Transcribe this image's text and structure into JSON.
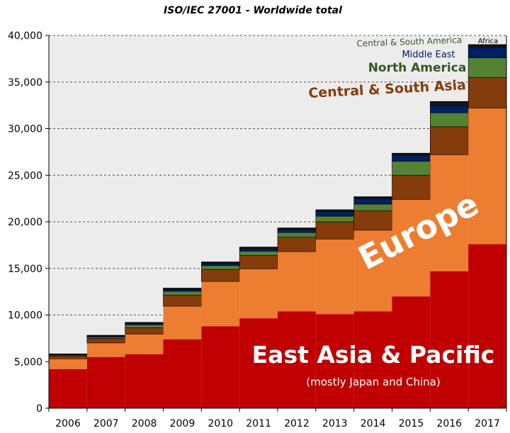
{
  "chart_data": {
    "type": "bar",
    "stacked": true,
    "title": "ISO/IEC 27001 - Worldwide total",
    "xlabel": "",
    "ylabel": "",
    "ylim": [
      0,
      40000
    ],
    "yticks": [
      0,
      5000,
      10000,
      15000,
      20000,
      25000,
      30000,
      35000,
      40000
    ],
    "ytick_labels": [
      "0",
      "5,000",
      "10,000",
      "15,000",
      "20,000",
      "25,000",
      "30,000",
      "35,000",
      "40,000"
    ],
    "grid": true,
    "legend": "none",
    "categories": [
      "2006",
      "2007",
      "2008",
      "2009",
      "2010",
      "2011",
      "2012",
      "2013",
      "2014",
      "2015",
      "2016",
      "2017"
    ],
    "series": [
      {
        "name": "East Asia & Pacific",
        "color": "#c00000",
        "values": [
          4200,
          5500,
          5800,
          7400,
          8800,
          9650,
          10400,
          10100,
          10400,
          12000,
          14700,
          17600
        ]
      },
      {
        "name": "Europe",
        "color": "#ed7d31",
        "values": [
          1100,
          1500,
          2150,
          3550,
          4800,
          5300,
          6400,
          8050,
          8700,
          10400,
          12500,
          14600
        ]
      },
      {
        "name": "Central & South Asia",
        "color": "#843c0c",
        "values": [
          300,
          500,
          700,
          1200,
          1300,
          1450,
          1550,
          1850,
          2100,
          2600,
          3000,
          3300
        ]
      },
      {
        "name": "North America",
        "color": "#548235",
        "values": [
          100,
          150,
          300,
          400,
          400,
          450,
          500,
          600,
          700,
          1500,
          1500,
          2100
        ]
      },
      {
        "name": "Middle East",
        "color": "#002060",
        "values": [
          70,
          100,
          130,
          200,
          200,
          250,
          300,
          500,
          600,
          600,
          800,
          1100
        ]
      },
      {
        "name": "Central & South America",
        "color": "#1a1a1a",
        "values": [
          40,
          50,
          90,
          100,
          150,
          150,
          150,
          150,
          150,
          200,
          300,
          200
        ]
      },
      {
        "name": "Africa",
        "color": "#111111",
        "values": [
          10,
          10,
          20,
          20,
          30,
          30,
          30,
          30,
          30,
          50,
          100,
          100
        ]
      }
    ],
    "annotations": {
      "east_asia": "East Asia & Pacific",
      "east_asia_note": "(mostly Japan and China)",
      "europe": "Europe",
      "central_south_asia": "Central & South Asia",
      "north_america": "North America",
      "middle_east": "Middle East",
      "central_south_america": "Central & South America",
      "africa": "Africa"
    },
    "colors": {
      "plot_background": "#ececec",
      "grid": "#555555",
      "annotation_north_america": "#375623",
      "annotation_central_south_asia": "#843c0c",
      "annotation_middle_east": "#002060",
      "annotation_central_south_america": "#375623"
    }
  }
}
